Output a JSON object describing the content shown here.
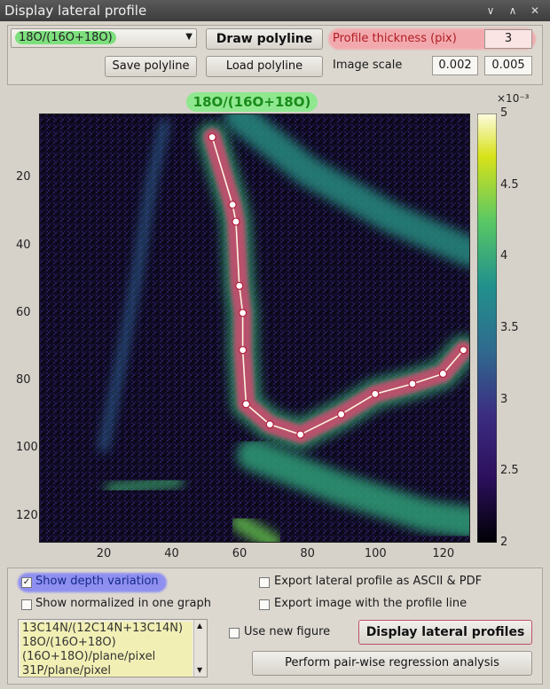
{
  "window": {
    "title": "Display lateral profile",
    "controls": [
      "∨",
      "∧",
      "✕"
    ]
  },
  "top": {
    "ratio_select": "18O/(16O+18O)",
    "draw_polyline": "Draw polyline",
    "save_polyline": "Save polyline",
    "load_polyline": "Load polyline",
    "profile_thickness_label": "Profile thickness (pix)",
    "profile_thickness_value": "3",
    "image_scale_label": "Image scale",
    "image_scale_min": "0.002",
    "image_scale_max": "0.005"
  },
  "chart_data": {
    "type": "heatmap",
    "title": "18O/(16O+18O)",
    "colormap": "viridis",
    "x_ticks": [
      "20",
      "40",
      "60",
      "80",
      "100",
      "120"
    ],
    "y_ticks": [
      "20",
      "40",
      "60",
      "80",
      "100",
      "120"
    ],
    "xlim": [
      1,
      128
    ],
    "ylim": [
      1,
      128
    ],
    "colorbar": {
      "exponent_label": "×10⁻³",
      "ticks": [
        "5",
        "4.5",
        "4",
        "3.5",
        "3",
        "2.5",
        "2"
      ],
      "range": [
        2,
        5
      ]
    },
    "polyline": {
      "x": [
        52,
        58,
        59,
        60,
        61,
        61,
        62,
        69,
        78,
        90,
        100,
        111,
        120,
        126
      ],
      "y": [
        8,
        28,
        33,
        52,
        60,
        71,
        87,
        93,
        96,
        90,
        84,
        81,
        78,
        71
      ]
    }
  },
  "bottom": {
    "show_depth_variation": "Show depth variation",
    "show_depth_checked": true,
    "show_normalized": "Show normalized in one graph",
    "export_ascii_pdf": "Export lateral profile as ASCII & PDF",
    "export_image": "Export image with the profile line",
    "use_new_figure": "Use new figure",
    "display_lateral_profiles": "Display lateral profiles",
    "pairwise_regression": "Perform pair-wise regression analysis",
    "list_items": [
      "13C14N/(12C14N+13C14N)",
      "18O/(16O+18O)",
      "(16O+18O)/plane/pixel",
      "31P/plane/pixel"
    ]
  }
}
